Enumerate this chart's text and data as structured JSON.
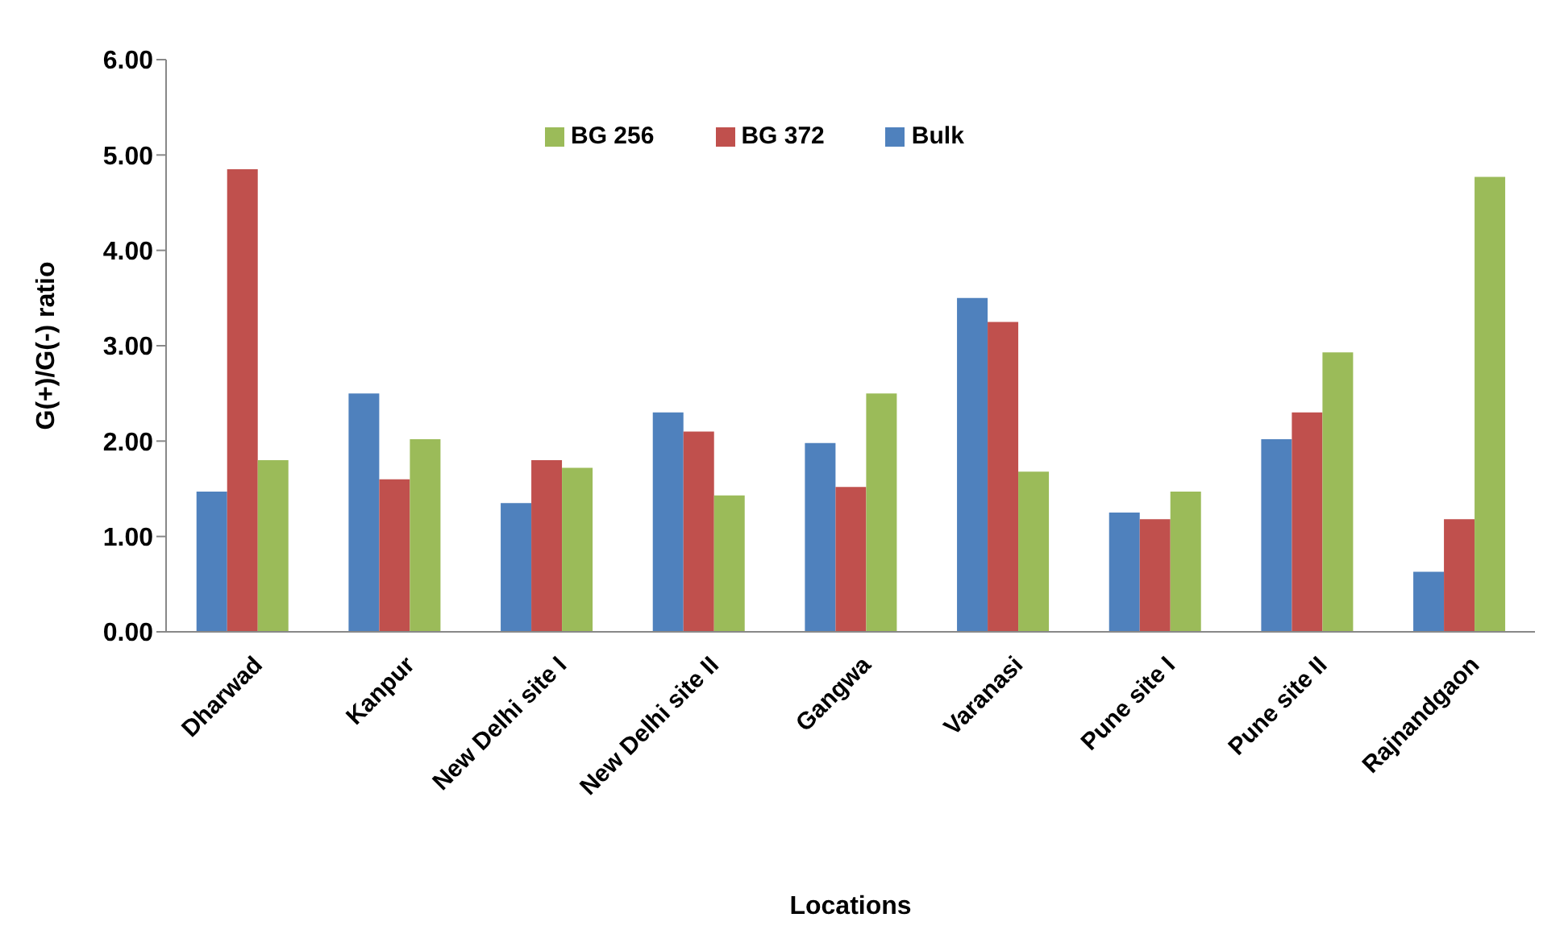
{
  "chart_data": {
    "type": "bar",
    "xlabel": "Locations",
    "ylabel": "G(+)/G(-) ratio",
    "categories": [
      "Dharwad",
      "Kanpur",
      "New Delhi site I",
      "New Delhi site II",
      "Gangwa",
      "Varanasi",
      "Pune site I",
      "Pune site II",
      "Rajnandgaon"
    ],
    "series": [
      {
        "name": "Bulk",
        "color": "#4f81bd",
        "values": [
          1.47,
          2.5,
          1.35,
          2.3,
          1.98,
          3.5,
          1.25,
          2.02,
          0.63
        ]
      },
      {
        "name": "BG 372",
        "color": "#c0504d",
        "values": [
          4.85,
          1.6,
          1.8,
          2.1,
          1.52,
          3.25,
          1.18,
          2.3,
          1.18
        ]
      },
      {
        "name": "BG 256",
        "color": "#9bbb59",
        "values": [
          1.8,
          2.02,
          1.72,
          1.43,
          2.5,
          1.68,
          1.47,
          2.93,
          4.77
        ]
      }
    ],
    "ylim": [
      0,
      6
    ],
    "yticks": [
      {
        "value": 0,
        "label": "0.00"
      },
      {
        "value": 1,
        "label": "1.00"
      },
      {
        "value": 2,
        "label": "2.00"
      },
      {
        "value": 3,
        "label": "3.00"
      },
      {
        "value": 4,
        "label": "4.00"
      },
      {
        "value": 5,
        "label": "5.00"
      },
      {
        "value": 6,
        "label": "6.00"
      }
    ],
    "grid": false,
    "legend": "top"
  }
}
